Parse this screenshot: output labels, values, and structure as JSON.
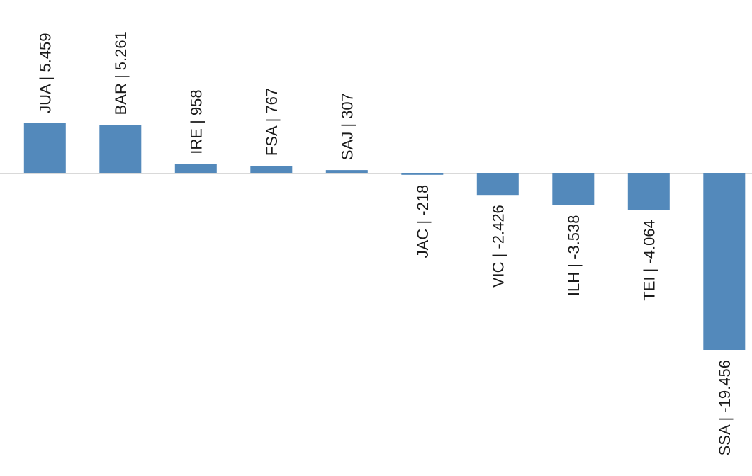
{
  "chart_data": {
    "type": "bar",
    "categories": [
      "JUA",
      "BAR",
      "IRE",
      "FSA",
      "SAJ",
      "JAC",
      "VIC",
      "ILH",
      "TEI",
      "SSA"
    ],
    "values": [
      5459,
      5261,
      958,
      767,
      307,
      -218,
      -2426,
      -3538,
      -4064,
      -19456
    ],
    "data_labels": [
      "JUA | 5.459",
      "BAR | 5.261",
      "IRE | 958",
      "FSA | 767",
      "SAJ | 307",
      "JAC | -218",
      "VIC | -2.426",
      "ILH | -3.538",
      "TEI | -4.064",
      "SSA | -19.456"
    ],
    "title": "",
    "xlabel": "",
    "ylabel": "",
    "grid": false,
    "axis_visible": false,
    "colors": {
      "bar": "#5389bb",
      "baseline": "#d9d9d9",
      "label": "#1a1a1a"
    }
  }
}
